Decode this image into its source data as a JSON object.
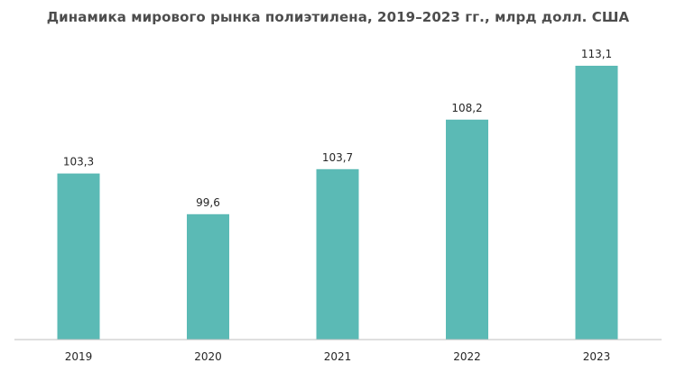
{
  "chart_data": {
    "type": "bar",
    "title": "Динамика мирового рынка полиэтилена, 2019–2023 гг., млрд долл. США",
    "categories": [
      "2019",
      "2020",
      "2021",
      "2022",
      "2023"
    ],
    "values": [
      103.3,
      99.6,
      103.7,
      108.2,
      113.1
    ],
    "value_labels": [
      "103,3",
      "99,6",
      "103,7",
      "108,2",
      "113,1"
    ],
    "xlabel": "",
    "ylabel": "",
    "ylim": [
      88.2,
      113.1
    ],
    "grid": false,
    "bar_color": "#5bbab5",
    "axis_color": "#bfbfbf"
  }
}
